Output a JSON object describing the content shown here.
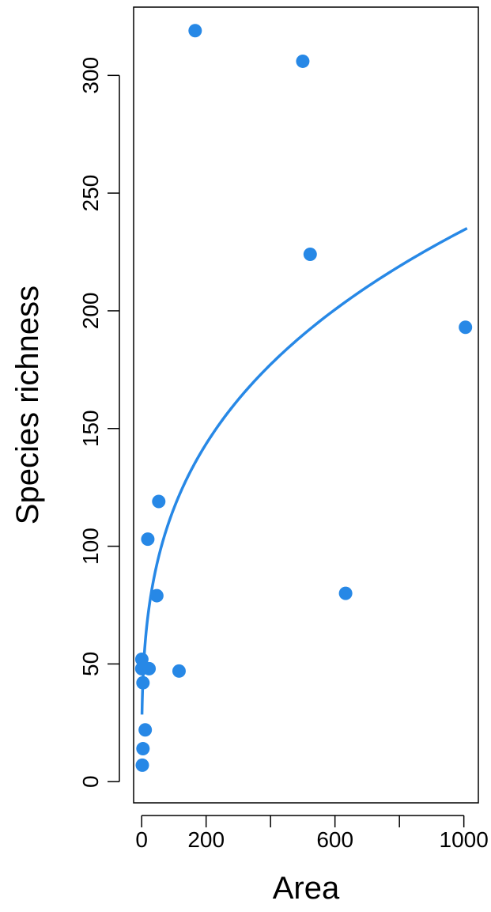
{
  "chart_data": {
    "type": "scatter",
    "title": "",
    "xlabel": "Area",
    "ylabel": "Species richness",
    "xlim": [
      -25,
      1045
    ],
    "ylim": [
      -9,
      329
    ],
    "x_ticks": [
      0,
      200,
      400,
      600,
      800,
      1000
    ],
    "x_tick_labels": [
      "0",
      "200",
      "",
      "600",
      "",
      "1000"
    ],
    "y_ticks": [
      0,
      50,
      100,
      150,
      200,
      250,
      300
    ],
    "y_tick_labels": [
      "0",
      "50",
      "100",
      "150",
      "200",
      "250",
      "300"
    ],
    "grid": false,
    "colors": {
      "points": "#2788e6",
      "fit_line": "#2788e6",
      "axis": "#000000"
    },
    "points": [
      {
        "x": 166,
        "y": 319
      },
      {
        "x": 500,
        "y": 306
      },
      {
        "x": 523,
        "y": 224
      },
      {
        "x": 1005,
        "y": 193
      },
      {
        "x": 53,
        "y": 119
      },
      {
        "x": 19,
        "y": 103
      },
      {
        "x": 633,
        "y": 80
      },
      {
        "x": 47,
        "y": 79
      },
      {
        "x": 0.5,
        "y": 52
      },
      {
        "x": 0.2,
        "y": 48
      },
      {
        "x": 23,
        "y": 48
      },
      {
        "x": 116,
        "y": 47
      },
      {
        "x": 4,
        "y": 42
      },
      {
        "x": 11,
        "y": 22
      },
      {
        "x": 4,
        "y": 14
      },
      {
        "x": 2,
        "y": 7
      }
    ],
    "fit_curve": {
      "type": "power",
      "c": 28.5,
      "z": 0.305,
      "x_start": 1,
      "x_end": 1010
    }
  }
}
